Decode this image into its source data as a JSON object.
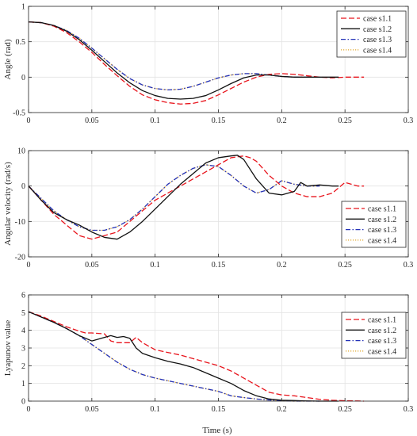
{
  "figure": {
    "xlabel": "Time (s)"
  },
  "chart_data": [
    {
      "type": "line",
      "ylabel": "Angle (rad)",
      "xlim": [
        0,
        0.3
      ],
      "ylim": [
        -0.5,
        1
      ],
      "xticks": [
        0,
        0.05,
        0.1,
        0.15,
        0.2,
        0.25,
        0.3
      ],
      "xtick_labels": [
        "0",
        "0.05",
        "0.1",
        "0.15",
        "0.2",
        "0.25",
        "0.3"
      ],
      "yticks": [
        -0.5,
        0,
        0.5,
        1
      ],
      "ytick_labels": [
        "-0.5",
        "0",
        "0.5",
        "1"
      ],
      "grid": true,
      "legend": "top-right",
      "series": [
        {
          "name": "case s1.1",
          "color": "#e8141c",
          "dash": "dash",
          "x": [
            0,
            0.01,
            0.02,
            0.03,
            0.04,
            0.05,
            0.06,
            0.07,
            0.08,
            0.09,
            0.1,
            0.11,
            0.12,
            0.13,
            0.14,
            0.15,
            0.16,
            0.17,
            0.18,
            0.19,
            0.2,
            0.21,
            0.22,
            0.23,
            0.24,
            0.25,
            0.26,
            0.265
          ],
          "y": [
            0.78,
            0.77,
            0.72,
            0.63,
            0.5,
            0.35,
            0.18,
            0.02,
            -0.13,
            -0.25,
            -0.32,
            -0.36,
            -0.38,
            -0.37,
            -0.33,
            -0.25,
            -0.16,
            -0.07,
            0.0,
            0.04,
            0.05,
            0.04,
            0.02,
            0.0,
            -0.01,
            0.0,
            0.0,
            0.0
          ]
        },
        {
          "name": "case s1.2",
          "color": "#111111",
          "dash": "solid",
          "x": [
            0,
            0.01,
            0.02,
            0.03,
            0.04,
            0.05,
            0.06,
            0.07,
            0.08,
            0.09,
            0.1,
            0.11,
            0.12,
            0.13,
            0.14,
            0.15,
            0.16,
            0.17,
            0.18,
            0.19,
            0.2,
            0.21,
            0.22,
            0.23,
            0.24,
            0.245
          ],
          "y": [
            0.78,
            0.77,
            0.73,
            0.65,
            0.53,
            0.38,
            0.22,
            0.06,
            -0.08,
            -0.19,
            -0.26,
            -0.3,
            -0.31,
            -0.3,
            -0.26,
            -0.18,
            -0.09,
            -0.01,
            0.03,
            0.03,
            0.01,
            0.0,
            0.0,
            0.0,
            0.0,
            0.0
          ]
        },
        {
          "name": "case s1.3",
          "color": "#2432b8",
          "dash": "dashdot",
          "x": [
            0,
            0.01,
            0.02,
            0.03,
            0.04,
            0.05,
            0.06,
            0.07,
            0.08,
            0.09,
            0.1,
            0.11,
            0.12,
            0.13,
            0.14,
            0.15,
            0.16,
            0.17,
            0.18,
            0.19,
            0.2,
            0.21,
            0.22,
            0.23
          ],
          "y": [
            0.78,
            0.77,
            0.73,
            0.66,
            0.55,
            0.41,
            0.26,
            0.11,
            -0.02,
            -0.11,
            -0.16,
            -0.18,
            -0.17,
            -0.13,
            -0.07,
            -0.01,
            0.03,
            0.05,
            0.05,
            0.03,
            0.01,
            0.0,
            0.0,
            0.0
          ]
        },
        {
          "name": "case s1.4",
          "color": "#e0a82e",
          "dash": "dot",
          "x": [
            0,
            0.01,
            0.02,
            0.03,
            0.04,
            0.05,
            0.06,
            0.07,
            0.08,
            0.09,
            0.1,
            0.11,
            0.12,
            0.13,
            0.14,
            0.15,
            0.16,
            0.17,
            0.18,
            0.19,
            0.2,
            0.21,
            0.22,
            0.23
          ],
          "y": [
            0.78,
            0.77,
            0.73,
            0.66,
            0.55,
            0.41,
            0.26,
            0.11,
            -0.02,
            -0.11,
            -0.16,
            -0.18,
            -0.17,
            -0.13,
            -0.07,
            -0.01,
            0.03,
            0.05,
            0.05,
            0.03,
            0.01,
            0.0,
            0.0,
            0.0
          ]
        }
      ]
    },
    {
      "type": "line",
      "ylabel": "Angular velocity (rad/s)",
      "xlim": [
        0,
        0.3
      ],
      "ylim": [
        -20,
        10
      ],
      "xticks": [
        0,
        0.05,
        0.1,
        0.15,
        0.2,
        0.25,
        0.3
      ],
      "xtick_labels": [
        "0",
        "0.05",
        "0.1",
        "0.15",
        "0.2",
        "0.25",
        "0.3"
      ],
      "yticks": [
        -20,
        -10,
        0,
        10
      ],
      "ytick_labels": [
        "-20",
        "-10",
        "0",
        "10"
      ],
      "grid": true,
      "legend": "bottom-right",
      "series": [
        {
          "name": "case s1.1",
          "color": "#e8141c",
          "dash": "dash",
          "x": [
            0,
            0.01,
            0.02,
            0.03,
            0.04,
            0.05,
            0.06,
            0.07,
            0.08,
            0.09,
            0.1,
            0.11,
            0.12,
            0.13,
            0.14,
            0.15,
            0.16,
            0.17,
            0.175,
            0.18,
            0.19,
            0.2,
            0.21,
            0.22,
            0.23,
            0.24,
            0.25,
            0.26,
            0.265
          ],
          "y": [
            0,
            -4,
            -8,
            -11,
            -14,
            -15,
            -14,
            -13,
            -10,
            -7,
            -4,
            -2,
            0,
            2,
            4,
            6,
            8,
            8.5,
            8,
            7,
            3,
            0,
            -2,
            -3,
            -3,
            -2,
            1,
            0,
            0
          ]
        },
        {
          "name": "case s1.2",
          "color": "#111111",
          "dash": "solid",
          "x": [
            0,
            0.01,
            0.02,
            0.03,
            0.04,
            0.05,
            0.06,
            0.07,
            0.08,
            0.09,
            0.1,
            0.11,
            0.12,
            0.13,
            0.14,
            0.15,
            0.16,
            0.165,
            0.17,
            0.18,
            0.19,
            0.2,
            0.21,
            0.215,
            0.22,
            0.23,
            0.24,
            0.245
          ],
          "y": [
            0,
            -4,
            -7.5,
            -9.5,
            -11,
            -13,
            -14.5,
            -15,
            -13,
            -10,
            -6.5,
            -3,
            0.5,
            3.5,
            6.5,
            8,
            8.5,
            8.7,
            7.5,
            2,
            -2,
            -2.5,
            -1.5,
            1,
            0,
            0.3,
            0,
            0
          ]
        },
        {
          "name": "case s1.3",
          "color": "#2432b8",
          "dash": "dashdot",
          "x": [
            0,
            0.01,
            0.02,
            0.03,
            0.04,
            0.05,
            0.06,
            0.07,
            0.08,
            0.09,
            0.1,
            0.11,
            0.12,
            0.13,
            0.14,
            0.15,
            0.16,
            0.17,
            0.18,
            0.19,
            0.2,
            0.21,
            0.22,
            0.23
          ],
          "y": [
            0,
            -3.5,
            -7,
            -9.5,
            -11.5,
            -12.5,
            -12.5,
            -11.5,
            -9.5,
            -6.5,
            -3,
            0.5,
            3,
            5,
            6,
            5.5,
            3,
            0,
            -2,
            -1,
            1.5,
            0.5,
            0,
            0
          ]
        },
        {
          "name": "case s1.4",
          "color": "#e0a82e",
          "dash": "dot",
          "x": [
            0,
            0.01,
            0.02,
            0.03,
            0.04,
            0.05,
            0.06,
            0.07,
            0.08,
            0.09,
            0.1,
            0.11,
            0.12,
            0.13,
            0.14,
            0.15,
            0.16,
            0.17,
            0.18,
            0.19,
            0.2,
            0.21,
            0.22,
            0.23
          ],
          "y": [
            0,
            -3.5,
            -7,
            -9.5,
            -11.5,
            -12.5,
            -12.5,
            -11.5,
            -9.5,
            -6.5,
            -3,
            0.5,
            3,
            5,
            6,
            5.5,
            3,
            0,
            -2,
            -1,
            1.5,
            0.5,
            0,
            0
          ]
        }
      ]
    },
    {
      "type": "line",
      "ylabel": "Lyapunov value",
      "xlabel": "Time (s)",
      "xlim": [
        0,
        0.3
      ],
      "ylim": [
        0,
        6
      ],
      "xticks": [
        0,
        0.05,
        0.1,
        0.15,
        0.2,
        0.25,
        0.3
      ],
      "xtick_labels": [
        "0",
        "0.05",
        "0.1",
        "0.15",
        "0.2",
        "0.25",
        "0.3"
      ],
      "yticks": [
        0,
        1,
        2,
        3,
        4,
        5,
        6
      ],
      "ytick_labels": [
        "0",
        "1",
        "2",
        "3",
        "4",
        "5",
        "6"
      ],
      "grid": true,
      "legend": "top-right",
      "series": [
        {
          "name": "case s1.1",
          "color": "#e8141c",
          "dash": "dash",
          "x": [
            0,
            0.01,
            0.02,
            0.03,
            0.04,
            0.045,
            0.05,
            0.06,
            0.065,
            0.07,
            0.08,
            0.085,
            0.09,
            0.1,
            0.11,
            0.12,
            0.13,
            0.14,
            0.15,
            0.16,
            0.17,
            0.18,
            0.19,
            0.2,
            0.21,
            0.22,
            0.23,
            0.24,
            0.25,
            0.26,
            0.265
          ],
          "y": [
            5.05,
            4.8,
            4.5,
            4.2,
            3.95,
            3.85,
            3.85,
            3.8,
            3.4,
            3.3,
            3.3,
            3.6,
            3.3,
            2.9,
            2.75,
            2.6,
            2.4,
            2.2,
            2.0,
            1.7,
            1.3,
            0.9,
            0.5,
            0.35,
            0.3,
            0.2,
            0.1,
            0.05,
            0.02,
            0.01,
            0.0
          ]
        },
        {
          "name": "case s1.2",
          "color": "#111111",
          "dash": "solid",
          "x": [
            0,
            0.01,
            0.02,
            0.03,
            0.04,
            0.05,
            0.055,
            0.06,
            0.065,
            0.07,
            0.075,
            0.08,
            0.085,
            0.09,
            0.1,
            0.11,
            0.12,
            0.13,
            0.14,
            0.15,
            0.16,
            0.17,
            0.18,
            0.19,
            0.2,
            0.21,
            0.22,
            0.23,
            0.24,
            0.245
          ],
          "y": [
            5.05,
            4.75,
            4.45,
            4.1,
            3.7,
            3.4,
            3.5,
            3.6,
            3.7,
            3.6,
            3.65,
            3.55,
            3.0,
            2.7,
            2.45,
            2.25,
            2.1,
            1.9,
            1.6,
            1.3,
            1.0,
            0.6,
            0.3,
            0.12,
            0.05,
            0.03,
            0.01,
            0.0,
            0.0,
            0.0
          ]
        },
        {
          "name": "case s1.3",
          "color": "#2432b8",
          "dash": "dashdot",
          "x": [
            0,
            0.01,
            0.02,
            0.03,
            0.04,
            0.05,
            0.06,
            0.07,
            0.08,
            0.09,
            0.1,
            0.11,
            0.12,
            0.13,
            0.14,
            0.15,
            0.16,
            0.17,
            0.18,
            0.19,
            0.2,
            0.21,
            0.22,
            0.23
          ],
          "y": [
            5.05,
            4.75,
            4.45,
            4.1,
            3.7,
            3.2,
            2.7,
            2.2,
            1.8,
            1.5,
            1.3,
            1.15,
            1.0,
            0.85,
            0.7,
            0.55,
            0.3,
            0.2,
            0.12,
            0.06,
            0.02,
            0.0,
            0.0,
            0.0
          ]
        },
        {
          "name": "case s1.4",
          "color": "#e0a82e",
          "dash": "dot",
          "x": [
            0,
            0.01,
            0.02,
            0.03,
            0.04,
            0.05,
            0.06,
            0.07,
            0.08,
            0.09,
            0.1,
            0.11,
            0.12,
            0.13,
            0.14,
            0.15,
            0.16,
            0.17,
            0.18,
            0.19,
            0.2,
            0.21,
            0.22,
            0.23
          ],
          "y": [
            5.05,
            4.75,
            4.45,
            4.1,
            3.7,
            3.2,
            2.7,
            2.2,
            1.8,
            1.5,
            1.3,
            1.15,
            1.0,
            0.85,
            0.7,
            0.55,
            0.3,
            0.2,
            0.12,
            0.06,
            0.02,
            0.0,
            0.0,
            0.0
          ]
        }
      ]
    }
  ]
}
